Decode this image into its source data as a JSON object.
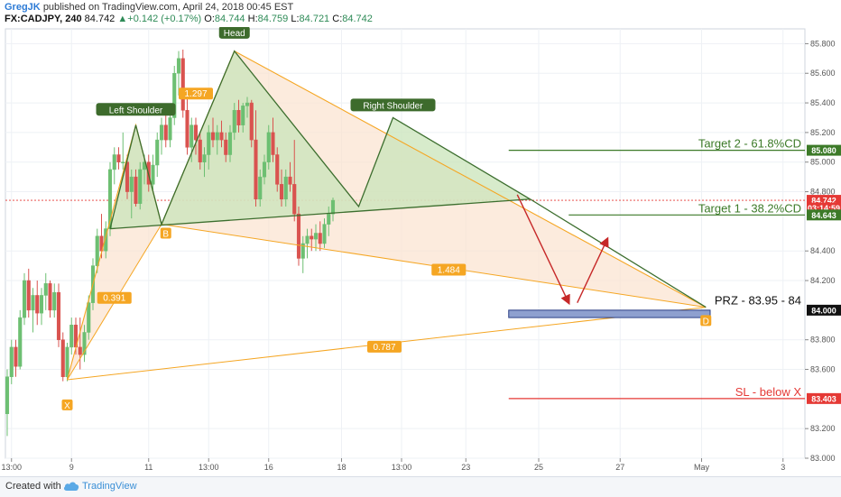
{
  "header": {
    "author": "GregJK",
    "published_text": "published on TradingView.com, April 24, 2018 00:45 EST",
    "symbol": "FX:CADJPY, 240",
    "last": "84.742",
    "change_up": "▲",
    "change": "+0.142 (+0.17%)",
    "open_label": "O:",
    "open": "84.744",
    "high_label": "H:",
    "high": "84.759",
    "low_label": "L:",
    "low": "84.721",
    "close_label": "C:",
    "close": "84.742"
  },
  "footer": {
    "created_with": "Created with",
    "brand": "TradingView",
    "logo_icon": "tradingview-cloud-icon"
  },
  "colors": {
    "bull": "#6dbf72",
    "bear": "#d9534f",
    "xabcd_line": "#f5a623",
    "xabcd_fill": "#fbe3cf",
    "hs_line": "#3c6e2e",
    "hs_fill": "#c9e4b9",
    "target": "#3c7a28",
    "stop": "#e53935",
    "prz_box": "#8ea0cf",
    "arrow": "#c62828"
  },
  "chart_data": {
    "type": "candlestick",
    "symbol": "FX:CADJPY",
    "timeframe": "240",
    "y_axis": {
      "ylim": [
        83.0,
        85.9
      ],
      "ticks": [
        "85.800",
        "85.600",
        "85.400",
        "85.200",
        "85.000",
        "84.800",
        "84.400",
        "84.200",
        "83.800",
        "83.600",
        "83.200",
        "83.000"
      ],
      "side": "right"
    },
    "x_axis": {
      "ticks": [
        {
          "label": "13:00",
          "t": 1
        },
        {
          "label": "9",
          "t": 15
        },
        {
          "label": "11",
          "t": 33
        },
        {
          "label": "13:00",
          "t": 47
        },
        {
          "label": "16",
          "t": 61
        },
        {
          "label": "18",
          "t": 78
        },
        {
          "label": "13:00",
          "t": 92
        },
        {
          "label": "23",
          "t": 107
        },
        {
          "label": "25",
          "t": 124
        },
        {
          "label": "27",
          "t": 143
        },
        {
          "label": "May",
          "t": 162
        },
        {
          "label": "3",
          "t": 181
        }
      ]
    },
    "price_badges": [
      {
        "label": "85.080",
        "value": 85.08,
        "bg": "#3c7a28"
      },
      {
        "label": "84.742",
        "value": 84.742,
        "bg": "#e53935"
      },
      {
        "label": "03:14:59",
        "value": 84.69,
        "bg": "#e53935"
      },
      {
        "label": "84.643",
        "value": 84.643,
        "bg": "#3c7a28"
      },
      {
        "label": "84.000",
        "value": 84.0,
        "bg": "#111111"
      },
      {
        "label": "83.403",
        "value": 83.403,
        "bg": "#e53935"
      }
    ],
    "current_price": 84.742,
    "candles": [
      [
        83.3,
        83.6,
        83.15,
        83.55
      ],
      [
        83.55,
        83.8,
        83.5,
        83.75
      ],
      [
        83.75,
        83.8,
        83.55,
        83.62
      ],
      [
        83.62,
        84.0,
        83.6,
        83.95
      ],
      [
        83.95,
        84.25,
        83.9,
        84.2
      ],
      [
        84.2,
        84.28,
        83.95,
        84.0
      ],
      [
        84.0,
        84.15,
        83.85,
        84.1
      ],
      [
        84.1,
        84.2,
        83.9,
        83.98
      ],
      [
        83.98,
        84.15,
        83.9,
        84.1
      ],
      [
        84.1,
        84.25,
        84.0,
        84.18
      ],
      [
        84.18,
        84.2,
        83.95,
        84.0
      ],
      [
        84.0,
        84.18,
        83.95,
        84.12
      ],
      [
        84.12,
        84.18,
        83.75,
        83.8
      ],
      [
        83.8,
        83.85,
        83.52,
        83.55
      ],
      [
        83.55,
        83.78,
        83.52,
        83.75
      ],
      [
        83.75,
        83.95,
        83.7,
        83.9
      ],
      [
        83.9,
        83.95,
        83.7,
        83.75
      ],
      [
        83.75,
        83.95,
        83.6,
        83.7
      ],
      [
        83.7,
        83.9,
        83.65,
        83.85
      ],
      [
        83.85,
        84.1,
        83.8,
        84.05
      ],
      [
        84.05,
        84.35,
        84.0,
        84.3
      ],
      [
        84.3,
        84.55,
        84.25,
        84.5
      ],
      [
        84.5,
        84.65,
        84.35,
        84.4
      ],
      [
        84.4,
        84.6,
        84.35,
        84.55
      ],
      [
        84.55,
        85.0,
        84.5,
        84.95
      ],
      [
        84.95,
        85.1,
        84.85,
        85.05
      ],
      [
        85.05,
        85.1,
        84.95,
        85.0
      ],
      [
        85.0,
        85.2,
        84.95,
        85.0
      ],
      [
        85.0,
        85.05,
        84.75,
        84.8
      ],
      [
        84.8,
        84.95,
        84.62,
        84.9
      ],
      [
        84.9,
        84.95,
        84.7,
        84.72
      ],
      [
        84.72,
        85.0,
        84.68,
        84.95
      ],
      [
        84.95,
        85.05,
        84.85,
        85.0
      ],
      [
        85.0,
        85.05,
        84.8,
        84.85
      ],
      [
        84.85,
        85.05,
        84.8,
        84.98
      ],
      [
        84.98,
        85.2,
        84.9,
        85.15
      ],
      [
        85.15,
        85.3,
        85.05,
        85.25
      ],
      [
        85.25,
        85.35,
        85.1,
        85.15
      ],
      [
        85.15,
        85.35,
        85.1,
        85.3
      ],
      [
        85.3,
        85.65,
        85.25,
        85.6
      ],
      [
        85.6,
        85.75,
        85.45,
        85.7
      ],
      [
        85.7,
        85.76,
        85.3,
        85.35
      ],
      [
        85.35,
        85.45,
        85.05,
        85.1
      ],
      [
        85.1,
        85.3,
        85.0,
        85.25
      ],
      [
        85.25,
        85.3,
        85.05,
        85.15
      ],
      [
        85.15,
        85.2,
        84.95,
        85.0
      ],
      [
        85.0,
        85.1,
        84.9,
        85.05
      ],
      [
        85.05,
        85.25,
        84.95,
        85.2
      ],
      [
        85.2,
        85.3,
        85.1,
        85.15
      ],
      [
        85.15,
        85.25,
        85.05,
        85.2
      ],
      [
        85.2,
        85.28,
        85.1,
        85.15
      ],
      [
        85.15,
        85.2,
        85.0,
        85.05
      ],
      [
        85.05,
        85.25,
        85.0,
        85.2
      ],
      [
        85.2,
        85.4,
        85.15,
        85.35
      ],
      [
        85.35,
        85.42,
        85.2,
        85.25
      ],
      [
        85.25,
        85.4,
        85.2,
        85.38
      ],
      [
        85.38,
        85.44,
        85.3,
        85.4
      ],
      [
        85.4,
        85.42,
        85.1,
        85.15
      ],
      [
        85.15,
        85.35,
        84.7,
        84.75
      ],
      [
        84.75,
        84.95,
        84.7,
        84.9
      ],
      [
        84.9,
        85.05,
        84.85,
        85.0
      ],
      [
        85.0,
        85.25,
        84.95,
        85.2
      ],
      [
        85.2,
        85.3,
        85.0,
        85.05
      ],
      [
        85.05,
        85.1,
        84.8,
        84.85
      ],
      [
        84.85,
        84.95,
        84.7,
        84.75
      ],
      [
        84.75,
        84.95,
        84.7,
        84.9
      ],
      [
        84.9,
        85.0,
        84.8,
        84.85
      ],
      [
        84.85,
        85.15,
        84.6,
        84.65
      ],
      [
        84.65,
        84.7,
        84.3,
        84.35
      ],
      [
        84.35,
        84.5,
        84.25,
        84.45
      ],
      [
        84.45,
        84.55,
        84.35,
        84.5
      ],
      [
        84.5,
        84.55,
        84.4,
        84.48
      ],
      [
        84.48,
        84.58,
        84.4,
        84.52
      ],
      [
        84.52,
        84.6,
        84.4,
        84.45
      ],
      [
        84.45,
        84.62,
        84.42,
        84.58
      ],
      [
        84.58,
        84.7,
        84.5,
        84.65
      ],
      [
        84.65,
        84.76,
        84.6,
        84.742
      ]
    ],
    "xabcd": {
      "points": [
        {
          "name": "X",
          "t": 14,
          "price": 83.53
        },
        {
          "name": "A",
          "t": 30,
          "price": 85.25
        },
        {
          "name": "B",
          "t": 36,
          "price": 84.58
        },
        {
          "name": "C",
          "t": 53,
          "price": 85.75
        },
        {
          "name": "D",
          "t": 163,
          "price": 84.02
        }
      ],
      "labels": [
        {
          "text": "X",
          "t": 14,
          "price": 83.36
        },
        {
          "text": "B",
          "t": 37,
          "price": 84.52
        },
        {
          "text": "D",
          "t": 163,
          "price": 83.93
        }
      ],
      "ratios": [
        {
          "text": "0.391",
          "t": 25,
          "price": 84.08
        },
        {
          "text": "1.297",
          "t": 44,
          "price": 85.46
        },
        {
          "text": "1.484",
          "t": 103,
          "price": 84.27
        },
        {
          "text": "0.787",
          "t": 88,
          "price": 83.75
        }
      ]
    },
    "head_shoulders": {
      "points": [
        {
          "name": "start",
          "t": 24,
          "price": 84.55
        },
        {
          "name": "left-shoulder",
          "t": 30,
          "price": 85.25
        },
        {
          "name": "neck-1",
          "t": 36,
          "price": 84.58
        },
        {
          "name": "head",
          "t": 53,
          "price": 85.75
        },
        {
          "name": "neck-2",
          "t": 82,
          "price": 84.7
        },
        {
          "name": "right-shoulder",
          "t": 90,
          "price": 85.3
        },
        {
          "name": "apex",
          "t": 122,
          "price": 84.75
        },
        {
          "name": "end",
          "t": 163,
          "price": 84.02
        }
      ],
      "labels": [
        {
          "text": "Left Shoulder",
          "t": 30,
          "price": 85.35
        },
        {
          "text": "Head",
          "t": 53,
          "price": 85.87
        },
        {
          "text": "Right Shoulder",
          "t": 90,
          "price": 85.38
        }
      ]
    },
    "levels": [
      {
        "text": "Target 2 - 61.8%CD",
        "value": 85.08,
        "t_start": 117,
        "t_end": 187,
        "color": "#3c7a28"
      },
      {
        "text": "Target 1 - 38.2%CD",
        "value": 84.643,
        "t_start": 131,
        "t_end": 187,
        "color": "#3c7a28"
      },
      {
        "text": "SL - below X",
        "value": 83.403,
        "t_start": 117,
        "t_end": 187,
        "color": "#e53935"
      },
      {
        "text": "PRZ - 83.95 - 84",
        "value": 84.02,
        "t_start": 162,
        "t_end": 187,
        "color": "#111111"
      }
    ],
    "prz_zone": {
      "t_start": 117,
      "t_end": 164,
      "low": 83.95,
      "high": 84.0
    },
    "arrows": [
      {
        "from_t": 119,
        "from_price": 84.78,
        "to_t": 131,
        "to_price": 84.05
      },
      {
        "from_t": 133,
        "from_price": 84.05,
        "to_t": 140,
        "to_price": 84.48
      }
    ]
  }
}
